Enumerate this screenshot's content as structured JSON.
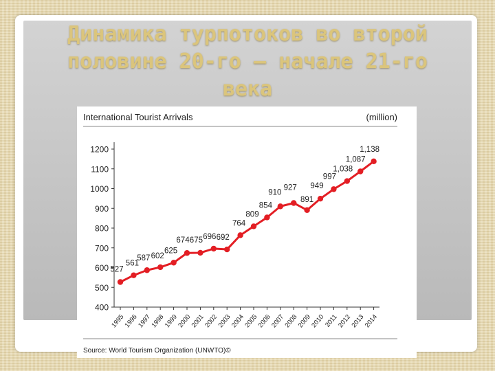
{
  "slide": {
    "title_lines": [
      "Динамика турпотоков во второй",
      "половине 20-го – начале 21-го",
      "века"
    ]
  },
  "chart_data": {
    "type": "line",
    "title": "International Tourist Arrivals",
    "unit_label": "(million)",
    "source": "Source: World Tourism Organization (UNWTO)©",
    "x": [
      "1995",
      "1996",
      "1997",
      "1998",
      "1999",
      "2000",
      "2001",
      "2002",
      "2003",
      "2004",
      "2005",
      "2006",
      "2007",
      "2008",
      "2009",
      "2010",
      "2011",
      "2012",
      "2013",
      "2014"
    ],
    "values": [
      527,
      561,
      587,
      602,
      625,
      674,
      675,
      696,
      692,
      764,
      809,
      854,
      910,
      927,
      891,
      949,
      997,
      1038,
      1087,
      1138
    ],
    "data_labels": [
      "527",
      "561",
      "587",
      "602",
      "625",
      "674",
      "675",
      "696",
      "692",
      "764",
      "809",
      "854",
      "910",
      "927",
      "891",
      "949",
      "997",
      "1,038",
      "1,087",
      "1,138"
    ],
    "ylim": [
      400,
      1200
    ],
    "yticks": [
      400,
      500,
      600,
      700,
      800,
      900,
      1000,
      1100,
      1200
    ],
    "grid": false,
    "color": "#e31e24"
  }
}
